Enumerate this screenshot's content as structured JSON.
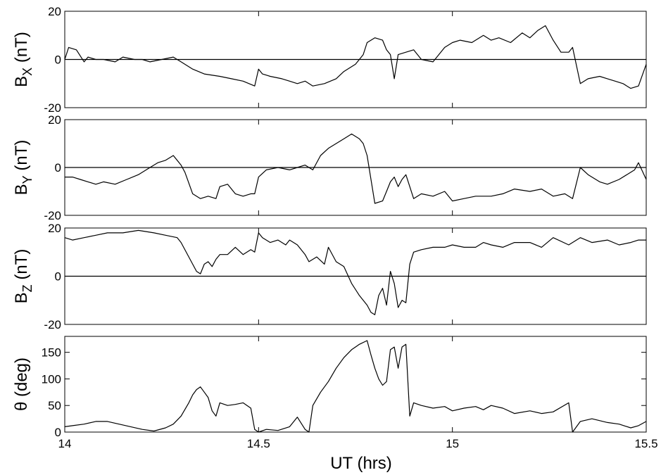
{
  "chart_data": [
    {
      "type": "line",
      "panel": "Bx",
      "ylabel_main": "B",
      "ylabel_sub": "X",
      "ylabel_unit": " (nT)",
      "ylim": [
        -20,
        20
      ],
      "yticks": [
        -20,
        0,
        20
      ],
      "xlim": [
        14,
        15.5
      ],
      "zero_line": true,
      "x": [
        14.0,
        14.01,
        14.03,
        14.05,
        14.06,
        14.08,
        14.1,
        14.13,
        14.15,
        14.18,
        14.2,
        14.22,
        14.25,
        14.28,
        14.3,
        14.33,
        14.36,
        14.4,
        14.43,
        14.46,
        14.49,
        14.5,
        14.51,
        14.53,
        14.56,
        14.58,
        14.6,
        14.62,
        14.64,
        14.67,
        14.7,
        14.72,
        14.75,
        14.77,
        14.78,
        14.8,
        14.82,
        14.83,
        14.84,
        14.85,
        14.86,
        14.88,
        14.9,
        14.92,
        14.95,
        14.98,
        15.0,
        15.02,
        15.05,
        15.08,
        15.1,
        15.12,
        15.15,
        15.18,
        15.2,
        15.22,
        15.24,
        15.26,
        15.28,
        15.3,
        15.31,
        15.33,
        15.35,
        15.38,
        15.4,
        15.42,
        15.44,
        15.46,
        15.48,
        15.5
      ],
      "y": [
        0,
        5,
        4,
        -1,
        1,
        0,
        0,
        -1,
        1,
        0,
        0,
        -1,
        0,
        1,
        -1,
        -4,
        -6,
        -7,
        -8,
        -9,
        -11,
        -4,
        -6,
        -7,
        -8,
        -9,
        -10,
        -9,
        -11,
        -10,
        -8,
        -5,
        -2,
        2,
        7,
        9,
        8,
        4,
        2,
        -8,
        2,
        3,
        4,
        0,
        -1,
        5,
        7,
        8,
        7,
        10,
        8,
        9,
        7,
        11,
        9,
        12,
        14,
        8,
        3,
        3,
        5,
        -10,
        -8,
        -7,
        -8,
        -9,
        -10,
        -12,
        -11,
        -2
      ]
    },
    {
      "type": "line",
      "panel": "By",
      "ylabel_main": "B",
      "ylabel_sub": "Y",
      "ylabel_unit": " (nT)",
      "ylim": [
        -20,
        20
      ],
      "yticks": [
        -20,
        0,
        20
      ],
      "xlim": [
        14,
        15.5
      ],
      "zero_line": true,
      "x": [
        14.0,
        14.02,
        14.04,
        14.06,
        14.08,
        14.1,
        14.13,
        14.16,
        14.19,
        14.22,
        14.24,
        14.26,
        14.28,
        14.3,
        14.31,
        14.33,
        14.35,
        14.37,
        14.39,
        14.4,
        14.42,
        14.44,
        14.46,
        14.48,
        14.49,
        14.5,
        14.52,
        14.55,
        14.58,
        14.6,
        14.62,
        14.64,
        14.66,
        14.68,
        14.7,
        14.72,
        14.74,
        14.76,
        14.77,
        14.78,
        14.8,
        14.82,
        14.83,
        14.84,
        14.85,
        14.86,
        14.87,
        14.88,
        14.9,
        14.92,
        14.95,
        14.98,
        15.0,
        15.03,
        15.06,
        15.1,
        15.13,
        15.16,
        15.2,
        15.23,
        15.26,
        15.29,
        15.31,
        15.33,
        15.35,
        15.38,
        15.4,
        15.43,
        15.45,
        15.47,
        15.48,
        15.5
      ],
      "y": [
        -4,
        -4,
        -5,
        -6,
        -7,
        -6,
        -7,
        -5,
        -3,
        0,
        2,
        3,
        5,
        1,
        -2,
        -11,
        -13,
        -12,
        -13,
        -8,
        -7,
        -11,
        -12,
        -11,
        -11,
        -4,
        -1,
        0,
        -1,
        0,
        1,
        -1,
        5,
        8,
        10,
        12,
        14,
        12,
        10,
        5,
        -15,
        -14,
        -10,
        -6,
        -4,
        -8,
        -5,
        -3,
        -13,
        -11,
        -12,
        -10,
        -14,
        -13,
        -12,
        -12,
        -11,
        -9,
        -10,
        -9,
        -12,
        -11,
        -13,
        0,
        -3,
        -6,
        -7,
        -5,
        -3,
        -1,
        2,
        -5
      ]
    },
    {
      "type": "line",
      "panel": "Bz",
      "ylabel_main": "B",
      "ylabel_sub": "Z",
      "ylabel_unit": " (nT)",
      "ylim": [
        -20,
        20
      ],
      "yticks": [
        -20,
        0,
        20
      ],
      "xlim": [
        14,
        15.5
      ],
      "zero_line": true,
      "x": [
        14.0,
        14.02,
        14.05,
        14.08,
        14.11,
        14.15,
        14.19,
        14.23,
        14.26,
        14.29,
        14.3,
        14.32,
        14.33,
        14.34,
        14.35,
        14.36,
        14.37,
        14.38,
        14.39,
        14.4,
        14.42,
        14.44,
        14.46,
        14.48,
        14.49,
        14.5,
        14.51,
        14.53,
        14.55,
        14.57,
        14.58,
        14.6,
        14.62,
        14.63,
        14.65,
        14.67,
        14.68,
        14.7,
        14.72,
        14.74,
        14.76,
        14.78,
        14.79,
        14.8,
        14.81,
        14.82,
        14.83,
        14.84,
        14.85,
        14.86,
        14.87,
        14.88,
        14.89,
        14.9,
        14.92,
        14.95,
        14.98,
        15.0,
        15.03,
        15.06,
        15.08,
        15.1,
        15.13,
        15.16,
        15.2,
        15.23,
        15.26,
        15.3,
        15.33,
        15.36,
        15.4,
        15.43,
        15.46,
        15.48,
        15.5
      ],
      "y": [
        16,
        15,
        16,
        17,
        18,
        18,
        19,
        18,
        17,
        16,
        14,
        8,
        5,
        2,
        1,
        5,
        6,
        4,
        7,
        9,
        9,
        12,
        9,
        11,
        10,
        18,
        16,
        14,
        15,
        13,
        15,
        13,
        9,
        6,
        8,
        5,
        12,
        6,
        4,
        -3,
        -8,
        -12,
        -15,
        -16,
        -8,
        -5,
        -12,
        2,
        -3,
        -13,
        -10,
        -11,
        5,
        10,
        11,
        12,
        12,
        13,
        12,
        12,
        14,
        13,
        12,
        14,
        14,
        12,
        16,
        13,
        16,
        14,
        15,
        13,
        14,
        15,
        15
      ]
    },
    {
      "type": "line",
      "panel": "theta",
      "ylabel_main": "θ (deg)",
      "ylabel_sub": "",
      "ylabel_unit": "",
      "ylim": [
        0,
        180
      ],
      "yticks": [
        0,
        50,
        100,
        150
      ],
      "xlim": [
        14,
        15.5
      ],
      "zero_line": false,
      "x": [
        14.0,
        14.02,
        14.05,
        14.08,
        14.11,
        14.14,
        14.17,
        14.2,
        14.23,
        14.26,
        14.28,
        14.3,
        14.32,
        14.33,
        14.34,
        14.35,
        14.36,
        14.37,
        14.38,
        14.39,
        14.4,
        14.42,
        14.44,
        14.46,
        14.48,
        14.49,
        14.5,
        14.52,
        14.55,
        14.58,
        14.6,
        14.62,
        14.63,
        14.64,
        14.66,
        14.68,
        14.7,
        14.72,
        14.74,
        14.76,
        14.78,
        14.79,
        14.8,
        14.81,
        14.82,
        14.83,
        14.84,
        14.85,
        14.86,
        14.87,
        14.88,
        14.89,
        14.9,
        14.92,
        14.95,
        14.98,
        15.0,
        15.03,
        15.06,
        15.08,
        15.1,
        15.13,
        15.16,
        15.2,
        15.23,
        15.26,
        15.3,
        15.31,
        15.33,
        15.36,
        15.4,
        15.43,
        15.46,
        15.48,
        15.5
      ],
      "y": [
        10,
        12,
        15,
        20,
        20,
        15,
        10,
        5,
        2,
        8,
        15,
        30,
        55,
        70,
        80,
        85,
        75,
        65,
        40,
        30,
        55,
        50,
        52,
        55,
        45,
        5,
        0,
        5,
        3,
        10,
        28,
        5,
        0,
        50,
        75,
        95,
        120,
        140,
        155,
        165,
        172,
        145,
        120,
        100,
        88,
        95,
        155,
        160,
        120,
        160,
        165,
        30,
        55,
        50,
        45,
        48,
        40,
        45,
        48,
        42,
        50,
        45,
        35,
        40,
        35,
        38,
        55,
        0,
        20,
        25,
        18,
        15,
        8,
        12,
        20
      ]
    }
  ],
  "xaxis": {
    "xlabel": "UT (hrs)",
    "tick_values": [
      14,
      14.5,
      15,
      15.5
    ],
    "tick_labels": [
      "14",
      "14.5",
      "15",
      "15.5"
    ]
  }
}
